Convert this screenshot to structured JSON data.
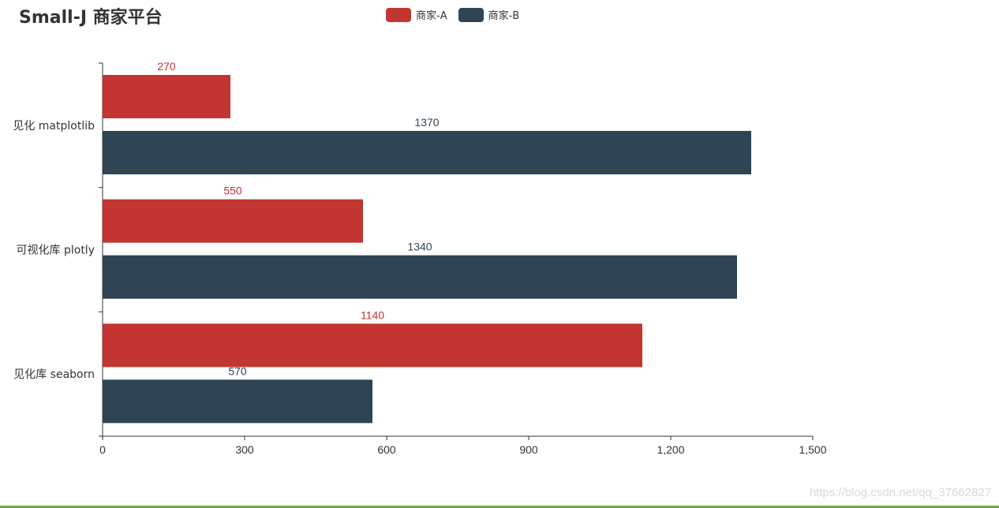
{
  "title": "Small-J 商家平台",
  "legend": [
    {
      "label": "商家-A",
      "color": "#c23531"
    },
    {
      "label": "商家-B",
      "color": "#2f4554"
    }
  ],
  "watermark": "https://blog.csdn.net/qq_37662827",
  "chart_data": {
    "type": "bar",
    "orientation": "horizontal",
    "title": "Small-J 商家平台",
    "categories": [
      "见化 matplotlib",
      "可视化库 plotly",
      "见化库 seaborn"
    ],
    "series": [
      {
        "name": "商家-A",
        "color": "#c23531",
        "values": [
          270,
          550,
          1140
        ]
      },
      {
        "name": "商家-B",
        "color": "#2f4554",
        "values": [
          1370,
          1340,
          570
        ]
      }
    ],
    "xlim": [
      0,
      1500
    ],
    "xticks": [
      "0",
      "300",
      "600",
      "900",
      "1,200",
      "1,500"
    ],
    "xlabel": "",
    "ylabel": "",
    "grid": false,
    "legend_position": "top-center",
    "data_labels": true
  }
}
